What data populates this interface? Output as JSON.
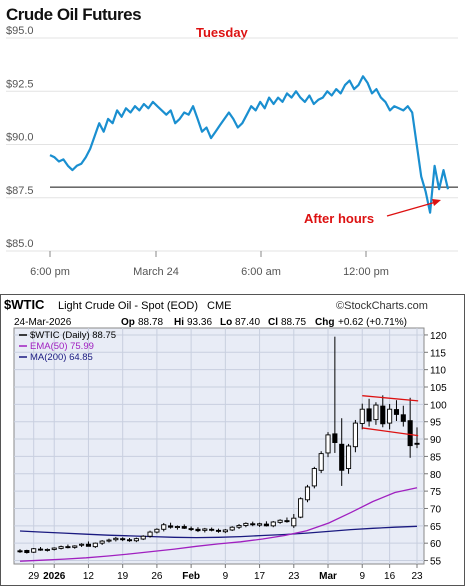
{
  "chart_data": [
    {
      "type": "line",
      "title": "Crude Oil Futures",
      "annotation_top": "Tuesday",
      "annotation_after": "After hours",
      "ylim": [
        85.0,
        95.0
      ],
      "y_ticks": [
        {
          "value": 95.0,
          "label": "$95.0"
        },
        {
          "value": 92.5,
          "label": "$92.5"
        },
        {
          "value": 90.0,
          "label": "$90.0"
        },
        {
          "value": 87.5,
          "label": "$87.5"
        },
        {
          "value": 85.0,
          "label": "$85.0"
        }
      ],
      "x_ticks": [
        "6:00 pm",
        "March 24",
        "6:00 am",
        "12:00 pm"
      ],
      "reference_line": 88.0,
      "series": [
        {
          "values": [
            89.5,
            89.4,
            89.2,
            89.3,
            89.0,
            88.8,
            89.0,
            89.1,
            89.4,
            89.8,
            90.4,
            91.0,
            90.6,
            91.2,
            91.0,
            91.6,
            91.3,
            91.7,
            91.5,
            91.8,
            91.6,
            91.9,
            91.7,
            92.0,
            91.8,
            91.6,
            91.4,
            91.6,
            91.0,
            91.2,
            91.5,
            91.4,
            91.8,
            91.2,
            90.6,
            90.8,
            90.3,
            90.6,
            90.9,
            91.2,
            91.5,
            91.2,
            90.8,
            91.0,
            91.4,
            91.8,
            91.6,
            92.0,
            91.7,
            92.2,
            91.9,
            92.2,
            92.0,
            92.4,
            92.2,
            92.5,
            92.2,
            92.0,
            92.3,
            91.9,
            92.1,
            92.2,
            92.5,
            92.3,
            92.6,
            92.4,
            92.8,
            93.0,
            92.6,
            92.8,
            93.2,
            92.9,
            92.4,
            92.6,
            92.2,
            92.0,
            91.6,
            91.8,
            91.7,
            91.6,
            91.8,
            91.5,
            90.0,
            88.5,
            87.8,
            86.8,
            89.0,
            87.9,
            88.8,
            87.9
          ]
        }
      ]
    },
    {
      "type": "candlestick",
      "symbol": "$WTIC",
      "name": "Light Crude Oil - Spot (EOD)",
      "exchange": "CME",
      "watermark": "©StockCharts.com",
      "date": "24-Mar-2026",
      "ohlc_header": {
        "op_label": "Op",
        "op": "88.78",
        "hi_label": "Hi",
        "hi": "93.36",
        "lo_label": "Lo",
        "lo": "87.40",
        "cl_label": "Cl",
        "cl": "88.75",
        "chg_label": "Chg",
        "chg": "+0.62 (+0.71%)"
      },
      "legend": [
        {
          "label": "$WTIC (Daily) 88.75",
          "color": "#000000"
        },
        {
          "label": "EMA(50) 75.99",
          "color": "#a020c0"
        },
        {
          "label": "MA(200) 64.85",
          "color": "#1a1a80"
        }
      ],
      "ylim": [
        54,
        122
      ],
      "y_ticks": [
        55,
        60,
        65,
        70,
        75,
        80,
        85,
        90,
        95,
        100,
        105,
        110,
        115,
        120
      ],
      "x_ticks": [
        "29",
        "2026",
        "12",
        "19",
        "26",
        "Feb",
        "9",
        "17",
        "23",
        "Mar",
        "9",
        "16",
        "23"
      ],
      "candles": [
        [
          57.8,
          58.3,
          57.2,
          57.6
        ],
        [
          57.9,
          58.1,
          57.0,
          57.3
        ],
        [
          57.4,
          58.6,
          57.2,
          58.4
        ],
        [
          58.3,
          58.9,
          57.8,
          58.0
        ],
        [
          58.0,
          58.5,
          57.6,
          58.2
        ],
        [
          58.2,
          58.8,
          57.9,
          58.6
        ],
        [
          58.5,
          59.3,
          58.2,
          59.0
        ],
        [
          59.0,
          59.6,
          58.5,
          58.8
        ],
        [
          58.8,
          59.4,
          58.4,
          59.2
        ],
        [
          59.4,
          60.0,
          58.9,
          59.7
        ],
        [
          59.7,
          60.5,
          59.3,
          59.1
        ],
        [
          59.0,
          60.2,
          58.6,
          60.0
        ],
        [
          60.0,
          60.9,
          59.5,
          60.6
        ],
        [
          60.6,
          61.3,
          60.2,
          60.9
        ],
        [
          61.0,
          61.8,
          60.5,
          61.4
        ],
        [
          61.3,
          61.7,
          60.6,
          61.0
        ],
        [
          61.0,
          61.5,
          60.4,
          60.7
        ],
        [
          60.7,
          61.6,
          60.3,
          61.3
        ],
        [
          61.2,
          62.3,
          60.9,
          62.0
        ],
        [
          62.0,
          63.6,
          61.6,
          63.2
        ],
        [
          63.2,
          64.3,
          62.8,
          64.0
        ],
        [
          64.0,
          65.8,
          63.4,
          65.3
        ],
        [
          65.0,
          65.9,
          64.2,
          64.6
        ],
        [
          64.5,
          65.1,
          63.9,
          64.8
        ],
        [
          64.8,
          65.4,
          64.1,
          64.3
        ],
        [
          64.2,
          64.8,
          63.5,
          64.0
        ],
        [
          64.0,
          64.6,
          63.2,
          63.6
        ],
        [
          63.7,
          64.4,
          63.1,
          64.1
        ],
        [
          64.0,
          64.5,
          63.4,
          63.8
        ],
        [
          63.7,
          64.2,
          63.0,
          63.4
        ],
        [
          63.3,
          64.1,
          62.9,
          63.8
        ],
        [
          63.8,
          64.9,
          63.5,
          64.6
        ],
        [
          64.6,
          65.5,
          64.1,
          65.1
        ],
        [
          65.1,
          66.0,
          64.6,
          65.7
        ],
        [
          65.6,
          66.2,
          64.9,
          65.3
        ],
        [
          65.2,
          65.9,
          64.7,
          65.6
        ],
        [
          65.5,
          66.3,
          64.8,
          65.0
        ],
        [
          65.0,
          66.4,
          64.6,
          66.1
        ],
        [
          66.0,
          66.9,
          65.6,
          66.6
        ],
        [
          66.5,
          67.4,
          65.9,
          66.2
        ],
        [
          65.0,
          68.4,
          64.4,
          67.2
        ],
        [
          67.5,
          73.2,
          67.2,
          72.8
        ],
        [
          72.5,
          76.8,
          71.8,
          76.2
        ],
        [
          76.5,
          82.0,
          75.8,
          81.5
        ],
        [
          81.0,
          86.5,
          80.2,
          85.8
        ],
        [
          86.0,
          92.0,
          84.8,
          91.2
        ],
        [
          91.5,
          119.5,
          86.0,
          89.0
        ],
        [
          88.5,
          96.0,
          76.5,
          81.0
        ],
        [
          81.5,
          88.6,
          80.0,
          88.0
        ],
        [
          87.8,
          95.5,
          86.2,
          94.6
        ],
        [
          94.5,
          100.2,
          92.8,
          98.6
        ],
        [
          98.7,
          101.6,
          93.6,
          95.2
        ],
        [
          95.6,
          100.6,
          94.1,
          99.8
        ],
        [
          99.5,
          102.6,
          93.4,
          94.4
        ],
        [
          94.6,
          100.1,
          92.8,
          98.6
        ],
        [
          98.5,
          101.2,
          95.2,
          97.1
        ],
        [
          97.0,
          99.6,
          93.6,
          95.1
        ],
        [
          95.3,
          101.9,
          84.6,
          88.1
        ],
        [
          88.78,
          93.36,
          87.4,
          88.75
        ]
      ],
      "ema50": [
        54.8,
        55.1,
        55.4,
        55.8,
        56.3,
        56.9,
        57.6,
        58.3,
        59.1,
        59.8,
        60.4,
        61.2,
        62.2,
        63.6,
        65.8,
        68.8,
        72.0,
        74.6,
        75.99
      ],
      "ma200": [
        63.5,
        63.2,
        62.9,
        62.6,
        62.3,
        62.1,
        61.9,
        61.7,
        61.6,
        61.7,
        61.9,
        62.2,
        62.5,
        62.9,
        63.4,
        63.9,
        64.3,
        64.6,
        64.85
      ],
      "channel": {
        "upper": [
          102.5,
          101.0
        ],
        "lower": [
          93.2,
          91.0
        ]
      }
    }
  ]
}
